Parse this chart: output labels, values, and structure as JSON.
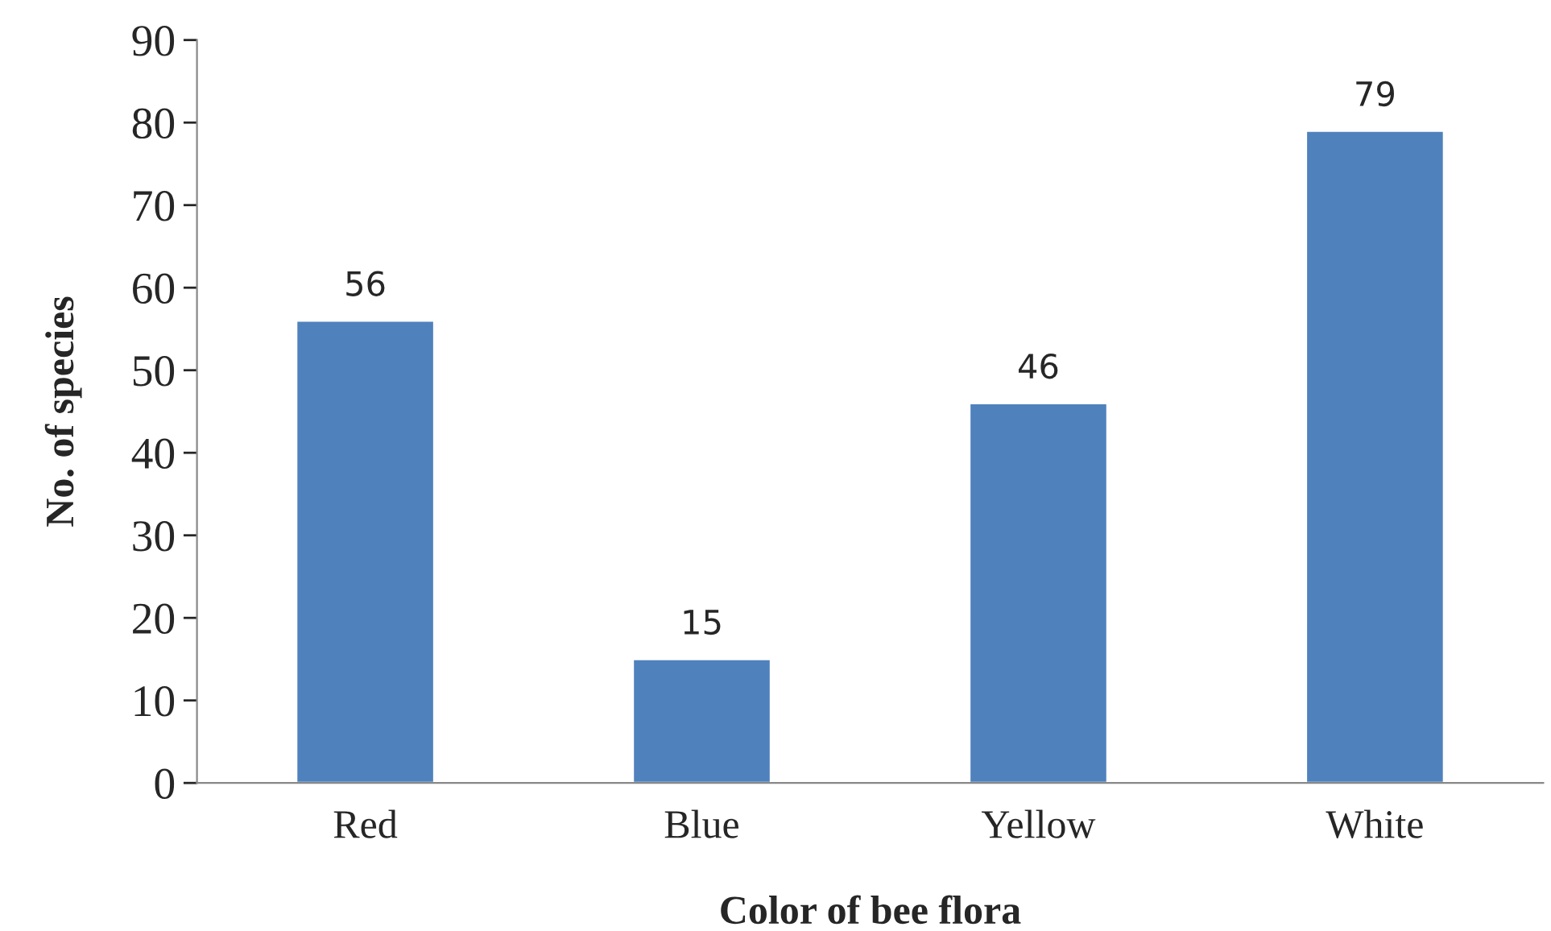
{
  "chart_data": {
    "type": "bar",
    "xlabel": "Color of bee flora",
    "ylabel": "No. of species",
    "categories": [
      "Red",
      "Blue",
      "Yellow",
      "White"
    ],
    "values": [
      56,
      15,
      46,
      79
    ],
    "color": "#4f81bd",
    "ylim": [
      0,
      90
    ],
    "yticks": [
      0,
      10,
      20,
      30,
      40,
      50,
      60,
      70,
      80,
      90
    ],
    "data_labels": true,
    "grid": false,
    "legend": false
  }
}
